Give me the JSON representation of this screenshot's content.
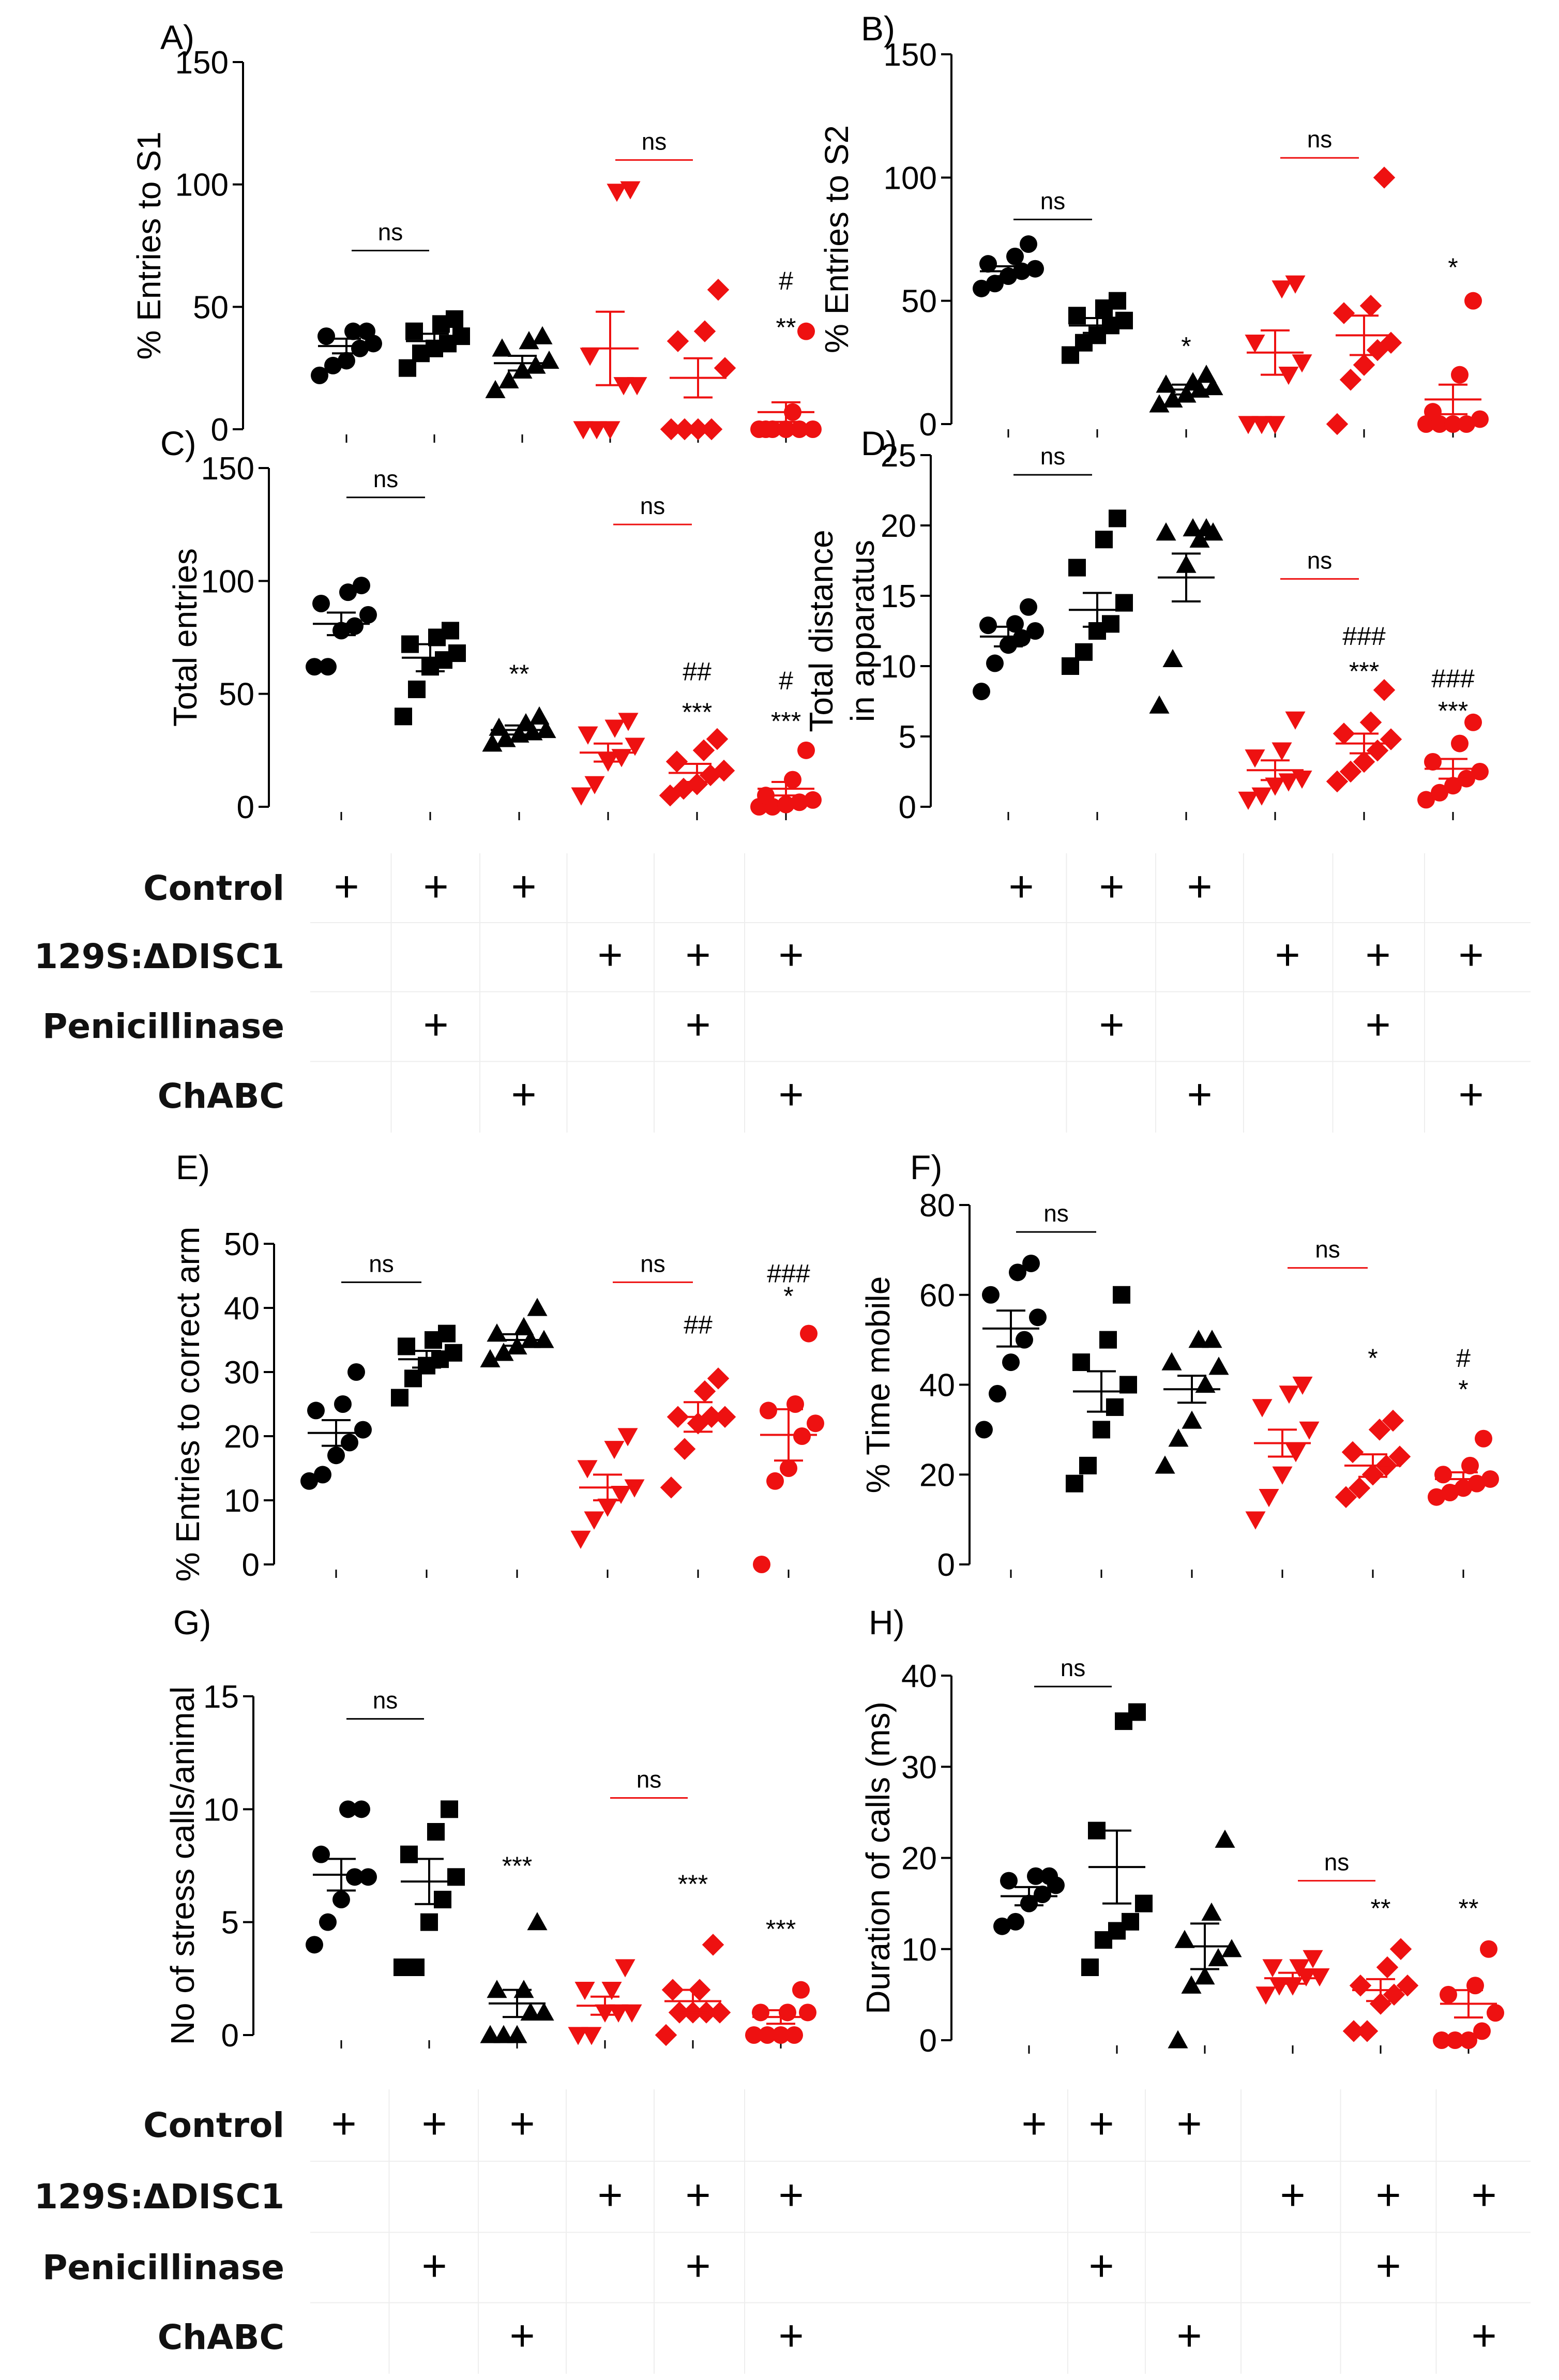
{
  "colors": {
    "control": "#000000",
    "disc": "#ee1111",
    "ns_control_line": "#000000",
    "ns_disc_line": "#ee1111"
  },
  "groups": [
    "Control",
    "Control + Penicillinase",
    "Control + ChABC",
    "129S:ΔDISC1",
    "129S:ΔDISC1 + Penicillinase",
    "129S:ΔDISC1 + ChABC"
  ],
  "markers": [
    "circle",
    "square",
    "triangle-up",
    "triangle-down",
    "diamond",
    "circle"
  ],
  "conditions": {
    "rows": [
      {
        "label": "Control",
        "plus": [
          true,
          true,
          true,
          false,
          false,
          false
        ]
      },
      {
        "label": "129S:ΔDISC1",
        "plus": [
          false,
          false,
          false,
          true,
          true,
          true
        ]
      },
      {
        "label": "Penicillinase",
        "plus": [
          false,
          true,
          false,
          false,
          true,
          false
        ]
      },
      {
        "label": "ChABC",
        "plus": [
          false,
          false,
          true,
          false,
          false,
          true
        ]
      }
    ],
    "plus_symbol": "+"
  },
  "chart_data": [
    {
      "panel": "A)",
      "type": "scatter",
      "ylabel": "% Entries to S1",
      "ylim": [
        0,
        150
      ],
      "yticks": [
        "0",
        "50",
        "100",
        "150"
      ],
      "groups": [
        {
          "mean": 34,
          "sem": 3,
          "points": [
            22,
            26,
            28,
            33,
            35,
            38,
            40,
            40
          ]
        },
        {
          "mean": 36,
          "sem": 3,
          "points": [
            25,
            31,
            33,
            35,
            38,
            40,
            43,
            45
          ]
        },
        {
          "mean": 27,
          "sem": 3,
          "points": [
            16,
            20,
            24,
            26,
            28,
            33,
            36,
            38
          ]
        },
        {
          "mean": 33,
          "sem": 15,
          "points": [
            0,
            0,
            0,
            18,
            18,
            30,
            97,
            98
          ]
        },
        {
          "mean": 21,
          "sem": 8,
          "points": [
            0,
            0,
            0,
            0,
            25,
            36,
            40,
            57
          ]
        },
        {
          "mean": 7,
          "sem": 4,
          "points": [
            0,
            0,
            0,
            0,
            0,
            0,
            7,
            40
          ]
        }
      ],
      "annotations": [
        {
          "text": "ns",
          "between": [
            1,
            2
          ],
          "color": "control",
          "y": 73
        },
        {
          "text": "ns",
          "between": [
            4,
            5
          ],
          "color": "disc",
          "y": 110
        },
        {
          "text": "#",
          "group": 6,
          "y": 57
        },
        {
          "text": "**",
          "group": 6,
          "y": 38
        }
      ]
    },
    {
      "panel": "B)",
      "type": "scatter",
      "ylabel": "% Entries to S2",
      "ylim": [
        0,
        150
      ],
      "yticks": [
        "0",
        "50",
        "100",
        "150"
      ],
      "groups": [
        {
          "mean": 62,
          "sem": 2,
          "points": [
            55,
            57,
            60,
            62,
            63,
            65,
            68,
            73
          ]
        },
        {
          "mean": 40,
          "sem": 3,
          "points": [
            28,
            33,
            36,
            40,
            42,
            44,
            47,
            50
          ]
        },
        {
          "mean": 14,
          "sem": 2,
          "points": [
            8,
            10,
            12,
            14,
            15,
            16,
            17,
            20
          ]
        },
        {
          "mean": 29,
          "sem": 9,
          "points": [
            0,
            0,
            0,
            20,
            25,
            33,
            55,
            57
          ]
        },
        {
          "mean": 36,
          "sem": 8,
          "points": [
            0,
            18,
            24,
            30,
            33,
            45,
            48,
            100
          ]
        },
        {
          "mean": 10,
          "sem": 6,
          "points": [
            0,
            0,
            0,
            0,
            2,
            5,
            20,
            50
          ]
        }
      ],
      "annotations": [
        {
          "text": "ns",
          "between": [
            1,
            2
          ],
          "color": "control",
          "y": 83
        },
        {
          "text": "ns",
          "between": [
            4,
            5
          ],
          "color": "disc",
          "y": 108
        },
        {
          "text": "*",
          "group": 3,
          "y": 28
        },
        {
          "text": "*",
          "group": 6,
          "y": 60
        }
      ]
    },
    {
      "panel": "C)",
      "type": "scatter",
      "ylabel": "Total entries",
      "ylim": [
        0,
        150
      ],
      "yticks": [
        "0",
        "50",
        "100",
        "150"
      ],
      "groups": [
        {
          "mean": 81,
          "sem": 5,
          "points": [
            62,
            62,
            78,
            80,
            85,
            90,
            95,
            98
          ]
        },
        {
          "mean": 66,
          "sem": 6,
          "points": [
            40,
            52,
            62,
            65,
            68,
            72,
            75,
            78
          ]
        },
        {
          "mean": 34,
          "sem": 2,
          "points": [
            28,
            30,
            32,
            33,
            34,
            35,
            37,
            40
          ]
        },
        {
          "mean": 24,
          "sem": 4,
          "points": [
            5,
            10,
            20,
            22,
            27,
            32,
            35,
            38
          ]
        },
        {
          "mean": 15,
          "sem": 4,
          "points": [
            5,
            8,
            10,
            14,
            16,
            20,
            25,
            30
          ]
        },
        {
          "mean": 8,
          "sem": 3,
          "points": [
            0,
            0,
            1,
            2,
            3,
            5,
            12,
            25
          ]
        }
      ],
      "annotations": [
        {
          "text": "ns",
          "between": [
            1,
            2
          ],
          "color": "control",
          "y": 137
        },
        {
          "text": "ns",
          "between": [
            4,
            5
          ],
          "color": "disc",
          "y": 125
        },
        {
          "text": "**",
          "group": 3,
          "y": 55
        },
        {
          "text": "##",
          "group": 5,
          "y": 56
        },
        {
          "text": "***",
          "group": 5,
          "y": 38
        },
        {
          "text": "#",
          "group": 6,
          "y": 52
        },
        {
          "text": "***",
          "group": 6,
          "y": 34
        }
      ]
    },
    {
      "panel": "D)",
      "type": "scatter",
      "ylabel": [
        "Total distance",
        "in apparatus"
      ],
      "ylim": [
        0,
        25
      ],
      "yticks": [
        "0",
        "5",
        "10",
        "15",
        "20",
        "25"
      ],
      "groups": [
        {
          "mean": 12.1,
          "sem": 0.7,
          "points": [
            8.2,
            10.2,
            11.5,
            12.0,
            12.5,
            12.9,
            13.0,
            14.2
          ]
        },
        {
          "mean": 14.0,
          "sem": 1.2,
          "points": [
            10.0,
            11.0,
            12.5,
            13.0,
            14.5,
            17.0,
            19.0,
            20.5
          ]
        },
        {
          "mean": 16.3,
          "sem": 1.7,
          "points": [
            7.2,
            10.5,
            17.2,
            19.0,
            19.5,
            19.5,
            19.8,
            19.8
          ]
        },
        {
          "mean": 2.6,
          "sem": 0.7,
          "points": [
            0.5,
            0.8,
            1.5,
            1.8,
            2.0,
            3.5,
            4.0,
            6.2
          ]
        },
        {
          "mean": 4.5,
          "sem": 0.7,
          "points": [
            1.8,
            2.5,
            3.2,
            4.0,
            4.8,
            5.2,
            6.0,
            8.3
          ]
        },
        {
          "mean": 2.7,
          "sem": 0.7,
          "points": [
            0.5,
            1.0,
            1.5,
            2.0,
            2.5,
            3.2,
            4.5,
            6.0
          ]
        }
      ],
      "annotations": [
        {
          "text": "ns",
          "between": [
            1,
            2
          ],
          "color": "control",
          "y": 23.6
        },
        {
          "text": "ns",
          "between": [
            4,
            5
          ],
          "color": "disc",
          "y": 16.2
        },
        {
          "text": "###",
          "group": 5,
          "y": 11.5
        },
        {
          "text": "***",
          "group": 5,
          "y": 9.0
        },
        {
          "text": "###",
          "group": 6,
          "y": 8.5
        },
        {
          "text": "***",
          "group": 6,
          "y": 6.2
        }
      ]
    },
    {
      "panel": "E)",
      "type": "scatter",
      "ylabel": "% Entries to correct arm",
      "ylim": [
        0,
        50
      ],
      "yticks": [
        "0",
        "10",
        "20",
        "30",
        "40",
        "50"
      ],
      "groups": [
        {
          "mean": 20.5,
          "sem": 2,
          "points": [
            13,
            14,
            17,
            19,
            21,
            24,
            25,
            30
          ]
        },
        {
          "mean": 32,
          "sem": 1.3,
          "points": [
            26,
            29,
            31,
            32,
            33,
            34,
            35,
            36
          ]
        },
        {
          "mean": 35,
          "sem": 0.9,
          "points": [
            32,
            33,
            34,
            35,
            35,
            36,
            37,
            40
          ]
        },
        {
          "mean": 12,
          "sem": 2,
          "points": [
            4,
            7,
            9,
            11,
            12,
            15,
            18,
            20
          ]
        },
        {
          "mean": 23,
          "sem": 2.3,
          "points": [
            12,
            18,
            22,
            23,
            23,
            23,
            27,
            29
          ]
        },
        {
          "mean": 20.2,
          "sem": 4,
          "points": [
            0,
            13,
            15,
            20,
            22,
            24,
            25,
            36
          ]
        }
      ],
      "annotations": [
        {
          "text": "ns",
          "between": [
            1,
            2
          ],
          "color": "control",
          "y": 44
        },
        {
          "text": "ns",
          "between": [
            4,
            5
          ],
          "color": "disc",
          "y": 44
        },
        {
          "text": "##",
          "group": 5,
          "y": 36
        },
        {
          "text": "###",
          "group": 6,
          "y": 44
        },
        {
          "text": "*",
          "group": 6,
          "y": 40.5
        }
      ]
    },
    {
      "panel": "F)",
      "type": "scatter",
      "ylabel": "% Time mobile",
      "ylim": [
        0,
        80
      ],
      "yticks": [
        "0",
        "20",
        "40",
        "60",
        "80"
      ],
      "groups": [
        {
          "mean": 52.5,
          "sem": 4,
          "points": [
            30,
            38,
            45,
            50,
            55,
            60,
            65,
            67
          ]
        },
        {
          "mean": 38.5,
          "sem": 4.5,
          "points": [
            18,
            22,
            30,
            35,
            40,
            45,
            50,
            60
          ]
        },
        {
          "mean": 39,
          "sem": 3,
          "points": [
            22,
            28,
            32,
            40,
            44,
            45,
            50,
            50
          ]
        },
        {
          "mean": 27,
          "sem": 3,
          "points": [
            10,
            15,
            20,
            25,
            30,
            35,
            38,
            40
          ]
        },
        {
          "mean": 22,
          "sem": 2.5,
          "points": [
            15,
            17,
            20,
            22,
            24,
            25,
            30,
            32
          ]
        },
        {
          "mean": 19,
          "sem": 1.5,
          "points": [
            15,
            16,
            17,
            18,
            19,
            20,
            22,
            28
          ]
        }
      ],
      "annotations": [
        {
          "text": "ns",
          "between": [
            1,
            2
          ],
          "color": "control",
          "y": 74
        },
        {
          "text": "ns",
          "between": [
            4,
            5
          ],
          "color": "disc",
          "y": 66
        },
        {
          "text": "*",
          "group": 5,
          "y": 44
        },
        {
          "text": "#",
          "group": 6,
          "y": 44
        },
        {
          "text": "*",
          "group": 6,
          "y": 37
        }
      ]
    },
    {
      "panel": "G)",
      "type": "scatter",
      "ylabel": "No of stress calls/animal",
      "ylim": [
        0,
        15
      ],
      "yticks": [
        "0",
        "5",
        "10",
        "15"
      ],
      "groups": [
        {
          "mean": 7.1,
          "sem": 0.7,
          "points": [
            4,
            5,
            6,
            7,
            7,
            8,
            10,
            10
          ]
        },
        {
          "mean": 6.8,
          "sem": 1.0,
          "points": [
            3,
            3,
            5,
            6,
            7,
            8,
            9,
            10
          ]
        },
        {
          "mean": 1.4,
          "sem": 0.6,
          "points": [
            0,
            0,
            0,
            1,
            1,
            2,
            2,
            5
          ]
        },
        {
          "mean": 1.3,
          "sem": 0.4,
          "points": [
            0,
            0,
            1,
            1,
            1,
            2,
            2,
            3
          ]
        },
        {
          "mean": 1.5,
          "sem": 0.5,
          "points": [
            0,
            1,
            1,
            1,
            1,
            2,
            2,
            4
          ]
        },
        {
          "mean": 0.8,
          "sem": 0.3,
          "points": [
            0,
            0,
            0,
            0,
            1,
            1,
            1,
            2
          ]
        }
      ],
      "annotations": [
        {
          "text": "ns",
          "between": [
            1,
            2
          ],
          "color": "control",
          "y": 14.0
        },
        {
          "text": "ns",
          "between": [
            4,
            5
          ],
          "color": "disc",
          "y": 10.5
        },
        {
          "text": "***",
          "group": 3,
          "y": 7.1
        },
        {
          "text": "***",
          "group": 5,
          "y": 6.3
        },
        {
          "text": "***",
          "group": 6,
          "y": 4.3
        }
      ]
    },
    {
      "panel": "H)",
      "type": "scatter",
      "ylabel": "Duration of calls (ms)",
      "ylim": [
        0,
        40
      ],
      "yticks": [
        "0",
        "10",
        "20",
        "30",
        "40"
      ],
      "groups": [
        {
          "mean": 15.8,
          "sem": 1.0,
          "points": [
            12.5,
            13,
            15,
            16,
            17,
            17.5,
            18,
            18
          ]
        },
        {
          "mean": 19,
          "sem": 4.0,
          "points": [
            8,
            11,
            12,
            13,
            15,
            23,
            35,
            36
          ]
        },
        {
          "mean": 10.3,
          "sem": 2.5,
          "points": [
            0,
            6,
            7,
            9,
            10,
            11,
            14,
            22
          ]
        },
        {
          "mean": 6.8,
          "sem": 0.6,
          "points": [
            5,
            6,
            6,
            7,
            7,
            8,
            8,
            9
          ]
        },
        {
          "mean": 5.5,
          "sem": 1.2,
          "points": [
            1,
            1,
            4,
            5,
            6,
            6,
            8,
            10
          ]
        },
        {
          "mean": 4.0,
          "sem": 1.5,
          "points": [
            0,
            0,
            0,
            1,
            3,
            5,
            6,
            10
          ]
        }
      ],
      "annotations": [
        {
          "text": "ns",
          "between": [
            1,
            2
          ],
          "color": "control",
          "y": 38.8
        },
        {
          "text": "ns",
          "between": [
            4,
            5
          ],
          "color": "disc",
          "y": 17.5
        },
        {
          "text": "**",
          "group": 5,
          "y": 13.5
        },
        {
          "text": "**",
          "group": 6,
          "y": 13.5
        }
      ]
    }
  ]
}
